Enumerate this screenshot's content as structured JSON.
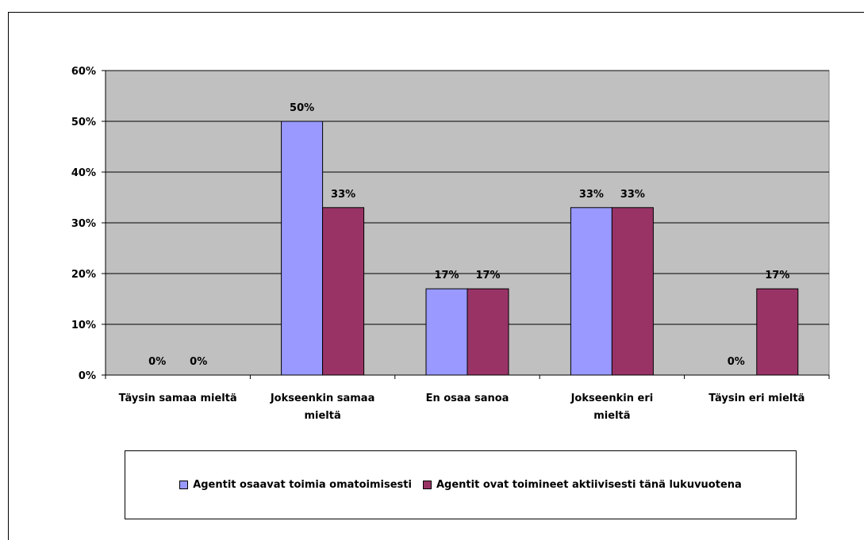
{
  "chart_data": {
    "type": "bar",
    "title": "",
    "xlabel": "",
    "ylabel": "",
    "categories": [
      [
        "Täysin samaa mieltä"
      ],
      [
        "Jokseenkin samaa",
        "mieltä"
      ],
      [
        "En osaa sanoa"
      ],
      [
        "Jokseenkin eri",
        "mieltä"
      ],
      [
        "Täysin eri mieltä"
      ]
    ],
    "series": [
      {
        "name": "Agentit osaavat toimia omatoimisesti",
        "color": "#9999FF",
        "values": [
          0,
          50,
          17,
          33,
          0
        ],
        "labels": [
          "0%",
          "50%",
          "17%",
          "33%",
          "0%"
        ]
      },
      {
        "name": "Agentit ovat toimineet aktiivisesti tänä lukuvuotena",
        "color": "#993366",
        "values": [
          0,
          33,
          17,
          33,
          17
        ],
        "labels": [
          "0%",
          "33%",
          "17%",
          "33%",
          "17%"
        ]
      }
    ],
    "ylim": [
      0,
      60
    ],
    "yticks": [
      "0%",
      "10%",
      "20%",
      "30%",
      "40%",
      "50%",
      "60%"
    ],
    "plot_background": "#C0C0C0",
    "grid": true,
    "legend_position": "bottom"
  }
}
